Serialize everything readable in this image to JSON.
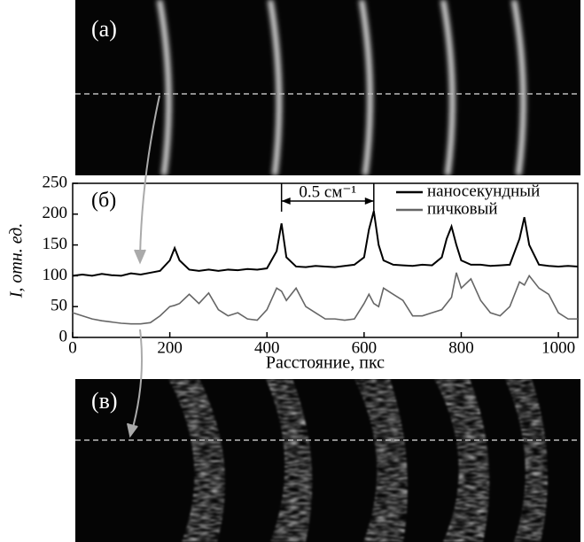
{
  "chart_data": {
    "type": "line",
    "panel_labels": [
      "(а)",
      "(б)",
      "(в)"
    ],
    "annotation": "0.5 см⁻¹",
    "x_label": "Расстояние, пкс",
    "y_label": "I, отн. ед.",
    "x": [
      0,
      20,
      40,
      60,
      80,
      100,
      120,
      140,
      160,
      180,
      200,
      210,
      220,
      240,
      260,
      280,
      300,
      320,
      340,
      360,
      380,
      400,
      420,
      430,
      440,
      460,
      480,
      500,
      520,
      540,
      560,
      580,
      600,
      610,
      620,
      630,
      640,
      660,
      680,
      700,
      720,
      740,
      760,
      770,
      780,
      790,
      800,
      820,
      840,
      860,
      880,
      900,
      920,
      930,
      940,
      960,
      980,
      1000,
      1020,
      1040
    ],
    "series": [
      {
        "name": "наносекундный",
        "color": "#000000",
        "values": [
          100,
          102,
          100,
          103,
          101,
          100,
          104,
          102,
          105,
          108,
          125,
          145,
          125,
          110,
          108,
          110,
          108,
          110,
          109,
          111,
          110,
          112,
          140,
          185,
          130,
          115,
          114,
          116,
          115,
          114,
          116,
          118,
          130,
          175,
          205,
          150,
          125,
          118,
          117,
          116,
          118,
          117,
          130,
          160,
          180,
          150,
          125,
          118,
          118,
          116,
          117,
          118,
          160,
          195,
          150,
          118,
          116,
          115,
          116,
          115
        ]
      },
      {
        "name": "пичковый",
        "color": "#666666",
        "values": [
          40,
          35,
          30,
          27,
          25,
          23,
          22,
          22,
          24,
          35,
          50,
          52,
          55,
          70,
          55,
          72,
          45,
          35,
          40,
          30,
          28,
          45,
          80,
          75,
          60,
          80,
          50,
          40,
          30,
          30,
          28,
          30,
          55,
          70,
          55,
          50,
          80,
          70,
          60,
          35,
          35,
          40,
          45,
          55,
          65,
          105,
          80,
          95,
          60,
          40,
          35,
          50,
          90,
          85,
          100,
          80,
          70,
          40,
          30,
          30
        ]
      }
    ],
    "xlim": [
      0,
      1040
    ],
    "ylim": [
      0,
      250
    ],
    "xticks": [
      0,
      200,
      400,
      600,
      800,
      1000
    ],
    "yticks": [
      0,
      50,
      100,
      150,
      200,
      250
    ],
    "annotation_range": [
      430,
      620
    ],
    "legend": "upper right"
  }
}
